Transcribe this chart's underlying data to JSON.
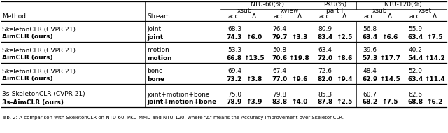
{
  "rows": [
    [
      "SkeletonCLR (CVPR 21)",
      "joint",
      "68.3",
      "",
      "76.4",
      "",
      "80.9",
      "",
      "56.8",
      "",
      "55.9",
      ""
    ],
    [
      "AimCLR (ours)",
      "joint",
      "74.3",
      "↑6.0",
      "79.7",
      "↑3.3",
      "83.4",
      "↑2.5",
      "63.4",
      "↑6.6",
      "63.4",
      "↑7.5"
    ],
    [
      "SkeletonCLR (CVPR 21)",
      "motion",
      "53.3",
      "",
      "50.8",
      "",
      "63.4",
      "",
      "39.6",
      "",
      "40.2",
      ""
    ],
    [
      "AimCLR (ours)",
      "motion",
      "66.8",
      "↑13.5",
      "70.6",
      "↑19.8",
      "72.0",
      "↑8.6",
      "57.3",
      "↑17.7",
      "54.4",
      "↑14.2"
    ],
    [
      "SkeletonCLR (CVPR 21)",
      "bone",
      "69.4",
      "",
      "67.4",
      "",
      "72.6",
      "",
      "48.4",
      "",
      "52.0",
      ""
    ],
    [
      "AimCLR (ours)",
      "bone",
      "73.2",
      "↑3.8",
      "77.0",
      "↑9.6",
      "82.0",
      "↑9.4",
      "62.9",
      "↑14.5",
      "63.4",
      "↑11.4"
    ],
    [
      "3s-SkeletonCLR (CVPR 21)",
      "joint+motion+bone",
      "75.0",
      "",
      "79.8",
      "",
      "85.3",
      "",
      "60.7",
      "",
      "62.6",
      ""
    ],
    [
      "3s-AimCLR (ours)",
      "joint+motion+bone",
      "78.9",
      "↑3.9",
      "83.8",
      "↑4.0",
      "87.8",
      "↑2.5",
      "68.2",
      "↑7.5",
      "68.8",
      "↑6.2"
    ]
  ],
  "bold_rows": [
    1,
    3,
    5,
    7
  ],
  "caption": "Tab. 2: A comparison with SkeletonCLR on NTU-60, PKU-MMD and NTU-120, where \"Δ\" means the Accuracy improvement over SkeletonCLR.",
  "background_color": "#ffffff",
  "fs": 6.5
}
